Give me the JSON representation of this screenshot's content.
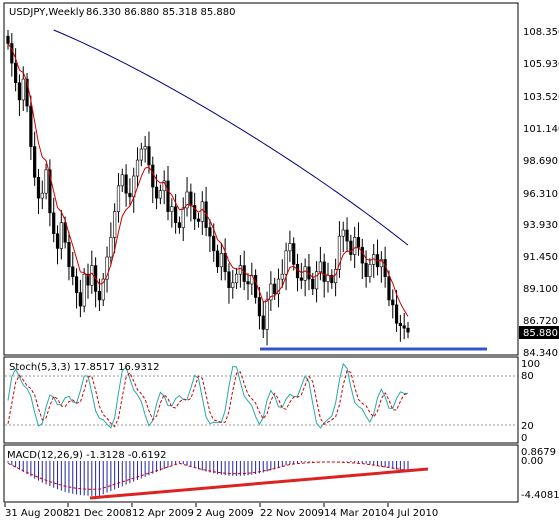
{
  "header": {
    "symbol": "USDJPY,Weekly",
    "ohlc": "86.330 86.880 85.318 85.880"
  },
  "colors": {
    "background": "#ffffff",
    "frame": "#000000",
    "candle": "#000000",
    "ma_fast": "#cc0000",
    "ma_slow": "#000080",
    "support_line": "#3355cc",
    "trend_line": "#dd2222",
    "stoch_main": "#2aa8a8",
    "stoch_signal": "#cc0000",
    "macd_hist": "#2222aa",
    "macd_signal": "#cc0000",
    "level_dotted": "#999999"
  },
  "price_axis": {
    "labels": [
      "108.350",
      "105.930",
      "103.520",
      "101.140",
      "98.690",
      "96.310",
      "93.930",
      "91.450",
      "89.100",
      "86.720",
      "85.880",
      "84.340"
    ],
    "current_price": "85.880"
  },
  "stoch": {
    "title": "Stoch(5,3,3) 17.8517 16.9312",
    "labels": [
      "100",
      "80",
      "20",
      "0"
    ]
  },
  "macd": {
    "title": "MACD(12,26,9) -1.3128 -0.6192",
    "labels": [
      "0.8679",
      "0.00",
      "-4.4081"
    ]
  },
  "time_axis": {
    "labels": [
      "31 Aug 2008",
      "21 Dec 2008",
      "12 Apr 2009",
      "2 Aug 2009",
      "22 Nov 2009",
      "14 Mar 2010",
      "4 Jul 2010"
    ]
  },
  "chart_data": [
    {
      "type": "candlestick",
      "title": "USDJPY,Weekly",
      "ylim": [
        84.34,
        110.5
      ],
      "series_close": [
        109.4,
        107.8,
        106.2,
        104.8,
        106.5,
        104.3,
        101.0,
        98.5,
        96.8,
        97.2,
        99.1,
        95.6,
        93.9,
        92.7,
        94.8,
        93.2,
        91.2,
        90.4,
        89.1,
        88.0,
        90.6,
        89.7,
        91.3,
        89.2,
        88.5,
        90.2,
        92.0,
        93.6,
        95.7,
        97.8,
        98.7,
        97.2,
        96.9,
        98.6,
        99.9,
        100.8,
        101.0,
        99.5,
        97.7,
        96.8,
        97.4,
        98.2,
        95.7,
        96.1,
        94.8,
        94.4,
        96.0,
        97.3,
        96.2,
        95.1,
        94.9,
        96.5,
        94.4,
        93.7,
        92.5,
        91.2,
        92.3,
        90.8,
        89.5,
        89.9,
        90.6,
        91.3,
        90.0,
        89.8,
        90.5,
        88.7,
        87.2,
        86.1,
        88.5,
        89.8,
        89.0,
        90.2,
        90.6,
        92.5,
        93.1,
        91.4,
        90.3,
        90.1,
        91.2,
        90.2,
        89.4,
        90.8,
        91.6,
        90.0,
        90.5,
        89.9,
        91.0,
        93.7,
        94.2,
        93.3,
        92.2,
        93.6,
        92.8,
        91.5,
        90.4,
        91.4,
        92.2,
        91.2,
        91.8,
        90.4,
        88.5,
        88.1,
        86.6,
        86.4,
        86.2,
        85.88
      ],
      "ma_fast_label": "red moving average",
      "ma_slow_label": "navy moving average",
      "support_level": 84.7
    },
    {
      "type": "line",
      "title": "Stoch(5,3,3)",
      "ylim": [
        0,
        100
      ],
      "levels": [
        20,
        80
      ]
    },
    {
      "type": "bar",
      "title": "MACD(12,26,9)",
      "ylim": [
        -4.4081,
        0.8679
      ]
    }
  ]
}
